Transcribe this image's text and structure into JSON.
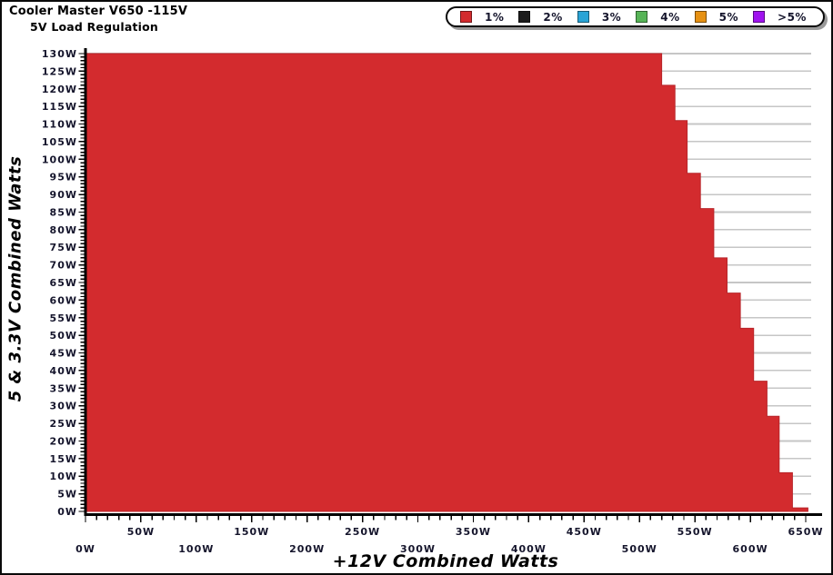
{
  "header": {
    "title": "Cooler Master V650 -115V",
    "subtitle": "5V Load Regulation"
  },
  "chart_data": {
    "type": "area",
    "title": "Cooler Master V650 -115V",
    "subtitle": "5V Load Regulation",
    "xlabel": "+12V Combined Watts",
    "ylabel": "5 & 3.3V Combined Watts",
    "xlim": [
      0,
      650
    ],
    "ylim": [
      0,
      130
    ],
    "x_tick_step_label": 50,
    "x_tick_step_minor": 10,
    "y_tick_step_label": 5,
    "y_tick_step_minor": 1,
    "grid": "horizontal",
    "x_ticks": [
      "0W",
      "50W",
      "100W",
      "150W",
      "200W",
      "250W",
      "300W",
      "350W",
      "400W",
      "450W",
      "500W",
      "550W",
      "600W",
      "650W"
    ],
    "y_ticks": [
      "0W",
      "5W",
      "10W",
      "15W",
      "20W",
      "25W",
      "30W",
      "35W",
      "40W",
      "45W",
      "50W",
      "55W",
      "60W",
      "65W",
      "70W",
      "75W",
      "80W",
      "85W",
      "90W",
      "95W",
      "100W",
      "105W",
      "110W",
      "115W",
      "120W",
      "125W",
      "130W"
    ],
    "legend": {
      "position": "top-right",
      "items": [
        {
          "label": "1%",
          "color": "#d32b2e"
        },
        {
          "label": "2%",
          "color": "#1c1c1c"
        },
        {
          "label": "3%",
          "color": "#2aa4d6"
        },
        {
          "label": "4%",
          "color": "#57b457"
        },
        {
          "label": "5%",
          "color": "#e69113"
        },
        {
          "label": ">5%",
          "color": "#a013ef"
        }
      ]
    },
    "series_name": "1% regulation pass region",
    "region_color": "#d32b2e",
    "region_edge_color": "#b8252a",
    "steps_unit": "W",
    "steps": [
      {
        "x_max": 520,
        "y_from": 130,
        "y_to": 121
      },
      {
        "x_max": 532,
        "y_from": 121,
        "y_to": 111
      },
      {
        "x_max": 543,
        "y_from": 111,
        "y_to": 96
      },
      {
        "x_max": 555,
        "y_from": 96,
        "y_to": 86
      },
      {
        "x_max": 567,
        "y_from": 86,
        "y_to": 72
      },
      {
        "x_max": 579,
        "y_from": 72,
        "y_to": 62
      },
      {
        "x_max": 591,
        "y_from": 62,
        "y_to": 52
      },
      {
        "x_max": 603,
        "y_from": 52,
        "y_to": 37
      },
      {
        "x_max": 615,
        "y_from": 37,
        "y_to": 27
      },
      {
        "x_max": 626,
        "y_from": 27,
        "y_to": 11
      },
      {
        "x_max": 638,
        "y_from": 11,
        "y_to": 1
      },
      {
        "x_max": 652,
        "y_from": 1,
        "y_to": 0
      }
    ]
  },
  "colors": {
    "gridline": "#c6c6c6",
    "axis": "#000000",
    "background": "#ffffff",
    "tick_label": "#15152c"
  }
}
